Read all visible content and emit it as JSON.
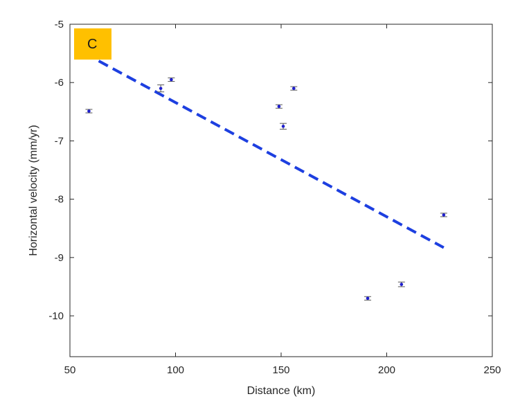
{
  "chart_data": {
    "type": "scatter",
    "title": "",
    "panel_label": "C",
    "xlabel": "Distance (km)",
    "ylabel": "Horizontal velocity (mm/yr)",
    "xlim": [
      50,
      250
    ],
    "ylim": [
      -10.7,
      -5
    ],
    "xticks": [
      50,
      100,
      150,
      200,
      250
    ],
    "yticks": [
      -5,
      -6,
      -7,
      -8,
      -9,
      -10
    ],
    "grid": false,
    "series": [
      {
        "marker": "point-with-errorbar",
        "color": "#1f1fcf",
        "points": [
          {
            "x": 59,
            "y": -6.49,
            "err": 0.03
          },
          {
            "x": 93,
            "y": -6.1,
            "err": 0.06
          },
          {
            "x": 98,
            "y": -5.95,
            "err": 0.03
          },
          {
            "x": 149,
            "y": -6.41,
            "err": 0.03
          },
          {
            "x": 151,
            "y": -6.75,
            "err": 0.05
          },
          {
            "x": 156,
            "y": -6.1,
            "err": 0.03
          },
          {
            "x": 191,
            "y": -9.7,
            "err": 0.03
          },
          {
            "x": 207,
            "y": -9.46,
            "err": 0.04
          },
          {
            "x": 227,
            "y": -8.27,
            "err": 0.03
          }
        ]
      },
      {
        "type": "line",
        "style": "dashed",
        "color": "#1d3fe0",
        "points": [
          {
            "x": 57,
            "y": -5.5
          },
          {
            "x": 227,
            "y": -8.83
          }
        ]
      }
    ],
    "colors": {
      "axis": "#262626",
      "badge": "#ffc000"
    }
  }
}
